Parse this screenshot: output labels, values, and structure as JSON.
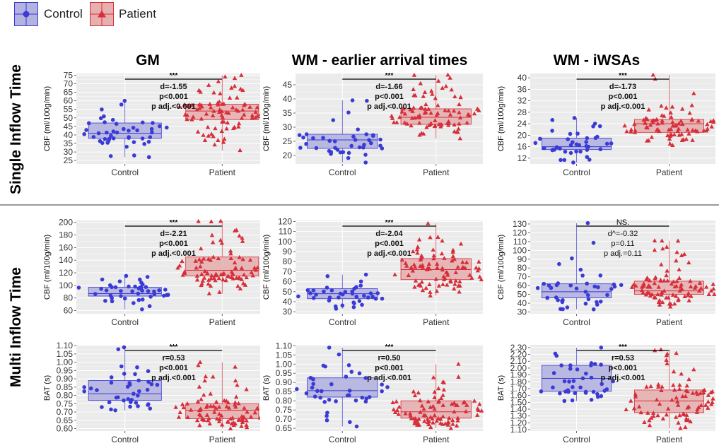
{
  "legend": [
    {
      "label": "Control",
      "color": "#3a3ad6",
      "fill": "#b3b3e0",
      "marker": "circle"
    },
    {
      "label": "Patient",
      "color": "#d62f3a",
      "fill": "#e6b0b0",
      "marker": "triangle"
    }
  ],
  "column_titles": [
    "GM",
    "WM - earlier arrival times",
    "WM - iWSAs"
  ],
  "row_titles": [
    "Single Inflow Time",
    "Multi Inflow Time"
  ],
  "chart_data": [
    {
      "type": "box",
      "panel": "single-gm",
      "ylabel": "CBF (ml/100g/min)",
      "ylim": [
        23,
        76
      ],
      "yticks": [
        25,
        30,
        35,
        40,
        45,
        50,
        55,
        60,
        65,
        70,
        75
      ],
      "categories": [
        "Control",
        "Patient"
      ],
      "control": {
        "q1": 38,
        "median": 41,
        "q3": 47,
        "min": 27,
        "max": 60,
        "n": 45
      },
      "patient": {
        "q1": 49,
        "median": 54,
        "q3": 58,
        "min": 31,
        "max": 75,
        "n": 90
      },
      "sig": "***",
      "stats": [
        "d=-1.55",
        "p<0.001",
        "p adj.<0.001"
      ]
    },
    {
      "type": "box",
      "panel": "single-wm-early",
      "ylabel": "CBF (ml/100g/min)",
      "ylim": [
        17,
        49
      ],
      "yticks": [
        20,
        25,
        30,
        35,
        40,
        45
      ],
      "categories": [
        "Control",
        "Patient"
      ],
      "control": {
        "q1": 22.5,
        "median": 25.5,
        "q3": 27.5,
        "min": 17.5,
        "max": 39.5,
        "n": 40
      },
      "patient": {
        "q1": 31,
        "median": 33.5,
        "q3": 36.5,
        "min": 26,
        "max": 48.5,
        "n": 90
      },
      "sig": "***",
      "stats": [
        "d=-1.66",
        "p<0.001",
        "p adj.<0.001"
      ]
    },
    {
      "type": "box",
      "panel": "single-wm-iwsa",
      "ylabel": "CBF (ml/100g/min)",
      "ylim": [
        10,
        41.5
      ],
      "yticks": [
        12,
        16,
        20,
        24,
        28,
        32,
        36,
        40
      ],
      "categories": [
        "Control",
        "Patient"
      ],
      "control": {
        "q1": 15,
        "median": 16,
        "q3": 19,
        "min": 10.5,
        "max": 26,
        "n": 40
      },
      "patient": {
        "q1": 21,
        "median": 24,
        "q3": 25.5,
        "min": 16.5,
        "max": 41,
        "n": 85
      },
      "sig": "***",
      "stats": [
        "d=-1.73",
        "p<0.001",
        "p adj.<0.001"
      ]
    },
    {
      "type": "box",
      "panel": "multi-cbf-gm",
      "ylabel": "CBF (ml/100g/min)",
      "ylim": [
        55,
        203
      ],
      "yticks": [
        60,
        80,
        100,
        120,
        140,
        160,
        180,
        200
      ],
      "categories": [
        "Control",
        "Patient"
      ],
      "control": {
        "q1": 83,
        "median": 87,
        "q3": 97,
        "min": 62,
        "max": 115,
        "n": 45
      },
      "patient": {
        "q1": 115,
        "median": 124,
        "q3": 145,
        "min": 87,
        "max": 202,
        "n": 90
      },
      "sig": "***",
      "stats": [
        "d=-2.21",
        "p<0.001",
        "p adj.<0.001"
      ]
    },
    {
      "type": "box",
      "panel": "multi-cbf-wm-early",
      "ylabel": "CBF (ml/100g/min)",
      "ylim": [
        28,
        121
      ],
      "yticks": [
        30,
        40,
        50,
        60,
        70,
        80,
        90,
        100,
        110,
        120
      ],
      "categories": [
        "Control",
        "Patient"
      ],
      "control": {
        "q1": 43,
        "median": 48,
        "q3": 53,
        "min": 33,
        "max": 67,
        "n": 40
      },
      "patient": {
        "q1": 62,
        "median": 72,
        "q3": 83,
        "min": 46,
        "max": 118,
        "n": 90
      },
      "sig": "***",
      "stats": [
        "d=-2.04",
        "p<0.001",
        "p adj.<0.001"
      ]
    },
    {
      "type": "box",
      "panel": "multi-cbf-wm-iwsa",
      "ylabel": "CBF (ml/100g/min)",
      "ylim": [
        28,
        134
      ],
      "yticks": [
        30,
        40,
        50,
        60,
        70,
        80,
        90,
        100,
        110,
        120,
        130
      ],
      "categories": [
        "Control",
        "Patient"
      ],
      "control": {
        "q1": 46,
        "median": 53,
        "q3": 62,
        "min": 33,
        "max": 131,
        "n": 40
      },
      "patient": {
        "q1": 50,
        "median": 54,
        "q3": 65,
        "min": 36,
        "max": 111,
        "n": 90
      },
      "sig": "NS.",
      "stats": [
        "d^=-0.32",
        "p=0.11",
        "p adj.=0.11"
      ]
    },
    {
      "type": "box",
      "panel": "multi-bat-gm",
      "ylabel": "BAT (s)",
      "ylim": [
        0.585,
        1.105
      ],
      "yticks": [
        0.6,
        0.65,
        0.7,
        0.75,
        0.8,
        0.85,
        0.9,
        0.95,
        1.0,
        1.05,
        1.1
      ],
      "categories": [
        "Control",
        "Patient"
      ],
      "control": {
        "q1": 0.77,
        "median": 0.81,
        "q3": 0.89,
        "min": 0.71,
        "max": 1.09,
        "n": 40
      },
      "patient": {
        "q1": 0.66,
        "median": 0.71,
        "q3": 0.75,
        "min": 0.6,
        "max": 1.0,
        "n": 90
      },
      "sig": "***",
      "stats": [
        "r=0.53",
        "p<0.001",
        "p adj.<0.001"
      ]
    },
    {
      "type": "box",
      "panel": "multi-bat-wm-early",
      "ylabel": "BAT (s)",
      "ylim": [
        0.635,
        1.105
      ],
      "yticks": [
        0.65,
        0.7,
        0.75,
        0.8,
        0.85,
        0.9,
        0.95,
        1.0,
        1.05,
        1.1
      ],
      "categories": [
        "Control",
        "Patient"
      ],
      "control": {
        "q1": 0.82,
        "median": 0.855,
        "q3": 0.925,
        "min": 0.66,
        "max": 1.09,
        "n": 40
      },
      "patient": {
        "q1": 0.705,
        "median": 0.74,
        "q3": 0.8,
        "min": 0.65,
        "max": 1.0,
        "n": 90
      },
      "sig": "***",
      "stats": [
        "r=0.50",
        "p<0.001",
        "p adj.<0.001"
      ]
    },
    {
      "type": "box",
      "panel": "multi-bat-wm-iwsa",
      "ylabel": "BAT (s)",
      "ylim": [
        1.08,
        2.34
      ],
      "yticks": [
        1.1,
        1.2,
        1.3,
        1.4,
        1.5,
        1.6,
        1.7,
        1.8,
        1.9,
        2.0,
        2.1,
        2.2,
        2.3
      ],
      "categories": [
        "Control",
        "Patient"
      ],
      "control": {
        "q1": 1.66,
        "median": 1.85,
        "q3": 2.04,
        "min": 1.52,
        "max": 2.3,
        "n": 40
      },
      "patient": {
        "q1": 1.35,
        "median": 1.52,
        "q3": 1.68,
        "min": 1.12,
        "max": 2.27,
        "n": 85
      },
      "sig": "***",
      "stats": [
        "r=0.53",
        "p<0.001",
        "p adj.<0.001"
      ]
    }
  ]
}
